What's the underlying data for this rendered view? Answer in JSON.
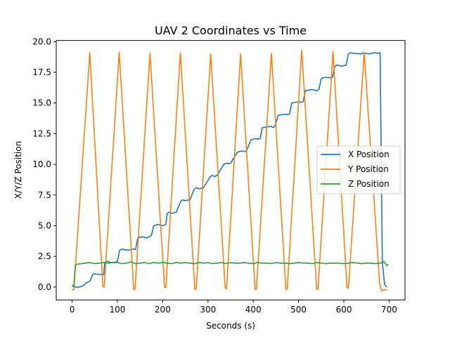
{
  "chart_data": {
    "type": "line",
    "title": "UAV 2 Coordinates vs Time",
    "xlabel": "Seconds (s)",
    "ylabel": "X/Y/Z Position",
    "xlim": [
      -35,
      735
    ],
    "ylim": [
      -1.05,
      20.1
    ],
    "xticks": [
      0,
      100,
      200,
      300,
      400,
      500,
      600,
      700
    ],
    "yticks": [
      0.0,
      2.5,
      5.0,
      7.5,
      10.0,
      12.5,
      15.0,
      17.5,
      20.0
    ],
    "xtick_labels": [
      "0",
      "100",
      "200",
      "300",
      "400",
      "500",
      "600",
      "700"
    ],
    "ytick_labels": [
      "0.0",
      "2.5",
      "5.0",
      "7.5",
      "10.0",
      "12.5",
      "15.0",
      "17.5",
      "20.0"
    ],
    "grid": false,
    "legend_position": "center-right",
    "series": [
      {
        "name": "X Position",
        "color": "#1f77b4",
        "x": [
          0,
          3,
          5,
          8,
          15,
          25,
          30,
          40,
          45,
          50,
          55,
          60,
          65,
          70,
          72,
          78,
          85,
          95,
          100,
          105,
          110,
          115,
          125,
          135,
          140,
          145,
          155,
          165,
          170,
          175,
          180,
          190,
          200,
          207,
          210,
          215,
          220,
          230,
          240,
          243,
          248,
          260,
          270,
          275,
          280,
          290,
          305,
          310,
          315,
          320,
          335,
          340,
          345,
          350,
          365,
          375,
          380,
          385,
          395,
          405,
          410,
          415,
          420,
          440,
          443,
          448,
          455,
          470,
          475,
          480,
          485,
          500,
          505,
          510,
          515,
          530,
          540,
          545,
          550,
          560,
          570,
          575,
          580,
          585,
          595,
          605,
          610,
          615,
          620,
          640,
          642,
          648,
          655,
          670,
          675,
          680,
          685,
          690,
          695
        ],
        "values": [
          0.1,
          0.05,
          0.0,
          0.0,
          0.0,
          0.1,
          0.3,
          0.5,
          1.0,
          1.1,
          1.05,
          1.0,
          1.05,
          1.0,
          2.0,
          2.1,
          2.0,
          2.0,
          2.1,
          3.0,
          3.1,
          3.05,
          3.0,
          3.1,
          3.05,
          4.0,
          4.1,
          4.0,
          4.1,
          4.2,
          5.0,
          5.1,
          5.0,
          5.1,
          6.0,
          6.1,
          6.0,
          6.1,
          7.0,
          7.1,
          7.05,
          7.1,
          8.0,
          8.1,
          8.0,
          8.1,
          9.0,
          9.1,
          9.0,
          9.1,
          10.0,
          10.1,
          10.05,
          10.1,
          11.0,
          11.1,
          11.05,
          11.1,
          12.0,
          12.1,
          12.05,
          12.1,
          13.0,
          13.1,
          13.0,
          13.1,
          14.0,
          14.1,
          14.05,
          14.1,
          15.0,
          15.1,
          15.05,
          15.1,
          16.0,
          16.1,
          16.0,
          16.1,
          17.0,
          17.1,
          17.05,
          17.1,
          18.0,
          18.1,
          18.0,
          18.1,
          19.0,
          19.1,
          19.05,
          19.0,
          19.1,
          19.05,
          19.0,
          19.1,
          19.05,
          19.1,
          2.0,
          0.2,
          0.0
        ]
      },
      {
        "name": "Y Position",
        "color": "#ff7f0e",
        "x": [
          0,
          4,
          39,
          68,
          71,
          104,
          136,
          139,
          172,
          204,
          207,
          239,
          271,
          274,
          306,
          338,
          341,
          372,
          404,
          407,
          440,
          472,
          475,
          507,
          540,
          543,
          576,
          607,
          610,
          645,
          679,
          683,
          690,
          695
        ],
        "values": [
          -0.25,
          -0.2,
          19.1,
          0.05,
          0.0,
          19.15,
          -0.2,
          -0.15,
          19.05,
          0.0,
          -0.05,
          19.1,
          -0.2,
          -0.15,
          19.0,
          -0.1,
          -0.15,
          19.0,
          -0.2,
          -0.15,
          19.05,
          -0.2,
          -0.15,
          19.3,
          -0.2,
          -0.15,
          19.2,
          -0.05,
          -0.1,
          19.1,
          0.3,
          -0.3,
          -0.2,
          -0.25
        ]
      },
      {
        "name": "Z Position",
        "color": "#2ca02c",
        "x": [
          0,
          4,
          7,
          10,
          20,
          30,
          40,
          50,
          60,
          70,
          80,
          90,
          100,
          110,
          120,
          130,
          140,
          150,
          160,
          170,
          180,
          190,
          200,
          210,
          220,
          230,
          240,
          250,
          260,
          270,
          280,
          290,
          300,
          310,
          320,
          330,
          340,
          350,
          360,
          370,
          380,
          390,
          400,
          410,
          420,
          430,
          440,
          450,
          460,
          470,
          480,
          490,
          500,
          510,
          520,
          530,
          540,
          550,
          560,
          570,
          580,
          590,
          600,
          610,
          620,
          630,
          640,
          650,
          660,
          670,
          680,
          684,
          688,
          692,
          695,
          698
        ],
        "values": [
          0.15,
          0.1,
          1.75,
          1.85,
          1.9,
          1.95,
          2.0,
          1.9,
          1.95,
          2.0,
          1.95,
          2.0,
          2.0,
          1.9,
          1.95,
          2.05,
          1.9,
          1.95,
          2.0,
          1.9,
          2.0,
          1.95,
          2.0,
          1.95,
          1.9,
          2.0,
          1.95,
          2.0,
          1.95,
          1.9,
          2.0,
          1.95,
          2.0,
          1.9,
          1.95,
          2.0,
          1.9,
          2.0,
          1.95,
          1.95,
          2.0,
          1.95,
          1.9,
          2.0,
          1.95,
          1.95,
          1.9,
          2.0,
          1.95,
          1.95,
          1.9,
          1.95,
          2.0,
          1.95,
          1.95,
          1.9,
          2.0,
          1.95,
          1.9,
          1.95,
          1.95,
          1.95,
          1.9,
          1.95,
          2.0,
          1.95,
          1.9,
          1.95,
          1.95,
          1.9,
          1.95,
          2.0,
          2.1,
          1.9,
          1.75,
          1.85
        ]
      }
    ]
  }
}
